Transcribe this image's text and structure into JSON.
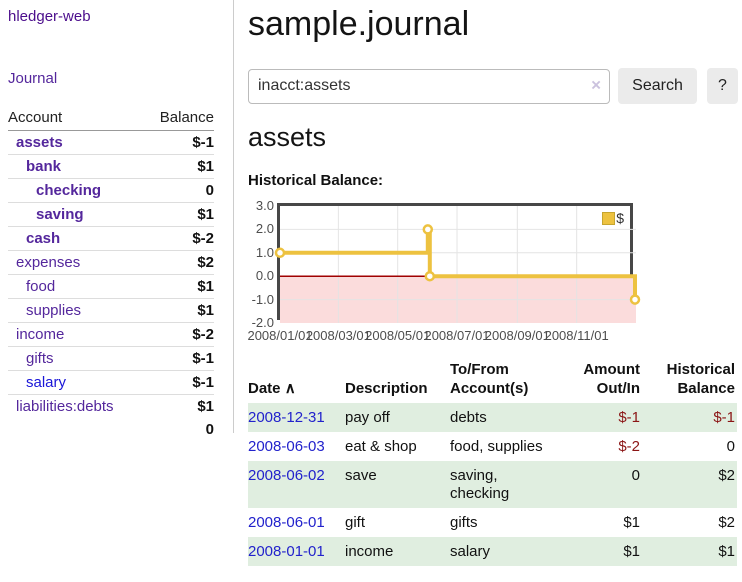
{
  "brand": "hledger-web",
  "sidebar": {
    "journal_link": "Journal",
    "account_header": "Account",
    "balance_header": "Balance",
    "accounts": [
      {
        "name": "assets",
        "balance": "$-1",
        "depth": 1,
        "bold": true,
        "neg": "strong"
      },
      {
        "name": "bank",
        "balance": "$1",
        "depth": 2,
        "bold": true,
        "neg": "none"
      },
      {
        "name": "checking",
        "balance": "0",
        "depth": 3,
        "bold": true,
        "neg": "none"
      },
      {
        "name": "saving",
        "balance": "$1",
        "depth": 3,
        "bold": true,
        "neg": "none"
      },
      {
        "name": "cash",
        "balance": "$-2",
        "depth": 2,
        "bold": true,
        "neg": "strong"
      },
      {
        "name": "expenses",
        "balance": "$2",
        "depth": 1,
        "bold": false,
        "neg": "none"
      },
      {
        "name": "food",
        "balance": "$1",
        "depth": 2,
        "bold": false,
        "neg": "none"
      },
      {
        "name": "supplies",
        "balance": "$1",
        "depth": 2,
        "bold": false,
        "neg": "none"
      },
      {
        "name": "income",
        "balance": "$-2",
        "depth": 1,
        "bold": false,
        "neg": "soft"
      },
      {
        "name": "gifts",
        "balance": "$-1",
        "depth": 2,
        "bold": false,
        "neg": "soft"
      },
      {
        "name": "salary",
        "balance": "$-1",
        "depth": 2,
        "bold": false,
        "neg": "soft",
        "link_color": "blue"
      },
      {
        "name": "liabilities:debts",
        "balance": "$1",
        "depth": 1,
        "bold": false,
        "neg": "none"
      }
    ],
    "total": "0"
  },
  "main": {
    "title": "sample.journal",
    "search": {
      "value": "inacct:assets",
      "clear_icon": "×",
      "button_label": "Search",
      "help_label": "?"
    },
    "account_heading": "assets",
    "chart_title": "Historical Balance:",
    "chart_data": {
      "type": "line",
      "step": true,
      "series": [
        {
          "name": "$",
          "color": "#edc240",
          "points": [
            [
              "2008-01-01",
              1
            ],
            [
              "2008-06-01",
              2
            ],
            [
              "2008-06-03",
              0
            ],
            [
              "2008-12-31",
              -1
            ]
          ]
        }
      ],
      "ylim": [
        -2,
        3
      ],
      "yticks": [
        3,
        2,
        1,
        0,
        -1,
        -2
      ],
      "xticks": [
        "2008/01/01",
        "2008/03/01",
        "2008/05/01",
        "2008/07/01",
        "2008/09/01",
        "2008/11/01"
      ],
      "xrange": [
        "2008-01-01",
        "2009-01-01"
      ],
      "legend_label": "$",
      "legend_position": "top-right",
      "grid": true,
      "negative_region_fill": "#fbdcdc",
      "zero_line_color": "#a00000",
      "grid_color": "#e4e4e4"
    },
    "register": {
      "headers": {
        "date": "Date",
        "sort_icon": "∧",
        "description": "Description",
        "accounts_line1": "To/From",
        "accounts_line2": "Account(s)",
        "amount_line1": "Amount",
        "amount_line2": "Out/In",
        "balance_line1": "Historical",
        "balance_line2": "Balance"
      },
      "rows": [
        {
          "date": "2008-12-31",
          "description": "pay off",
          "accounts": "debts",
          "amount": "$-1",
          "amount_neg": true,
          "balance": "$-1",
          "balance_neg": true
        },
        {
          "date": "2008-06-03",
          "description": "eat & shop",
          "accounts": "food, supplies",
          "amount": "$-2",
          "amount_neg": true,
          "balance": "0",
          "balance_neg": false
        },
        {
          "date": "2008-06-02",
          "description": "save",
          "accounts": "saving, checking",
          "amount": "0",
          "amount_neg": false,
          "balance": "$2",
          "balance_neg": false
        },
        {
          "date": "2008-06-01",
          "description": "gift",
          "accounts": "gifts",
          "amount": "$1",
          "amount_neg": false,
          "balance": "$2",
          "balance_neg": false
        },
        {
          "date": "2008-01-01",
          "description": "income",
          "accounts": "salary",
          "amount": "$1",
          "amount_neg": false,
          "balance": "$1",
          "balance_neg": false
        }
      ]
    }
  },
  "colors": {
    "brand_purple": "#4b0d8c",
    "link_purple": "#54279c",
    "link_blue": "#1a16d8",
    "date_link_blue": "#2222cc",
    "negative_strong": "#9e1515",
    "negative_soft": "#b96c6c",
    "register_negative": "#8b1515",
    "row_stripe_green": "#e0eee0",
    "chart_series_gold": "#edc240"
  }
}
